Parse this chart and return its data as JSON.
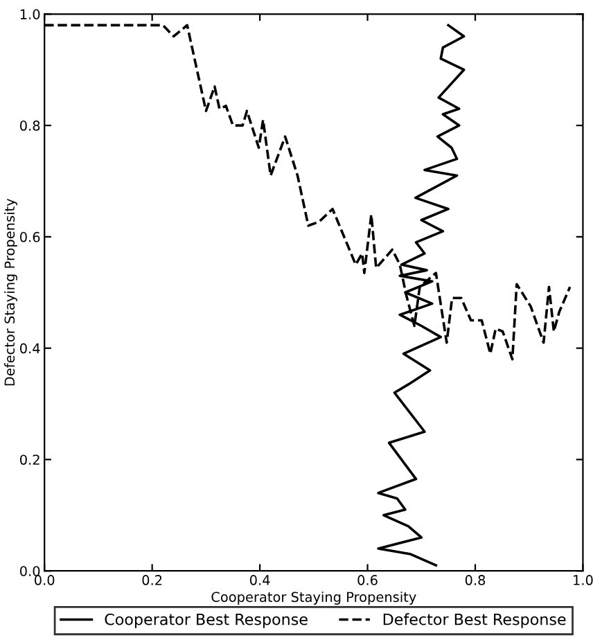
{
  "chart_data": {
    "type": "line",
    "xlabel": "Cooperator Staying Propensity",
    "ylabel": "Defector Staying Propensity",
    "xlim": [
      0.0,
      1.0
    ],
    "ylim": [
      0.0,
      1.0
    ],
    "xticks": [
      {
        "value": 0,
        "label": "0.0"
      },
      0.2,
      0.4,
      0.6,
      0.8,
      {
        "value": 1,
        "label": "1.0"
      }
    ],
    "yticks": [
      {
        "value": 0,
        "label": "0.0"
      },
      0.2,
      0.4,
      0.6,
      0.8,
      {
        "value": 1,
        "label": "1.0"
      }
    ],
    "grid": false,
    "legend": "bottom",
    "series": [
      {
        "name": "Cooperator Best Response",
        "color": "#000000",
        "line_style": "solid",
        "x": [
          0.727,
          0.68,
          0.62,
          0.7,
          0.676,
          0.63,
          0.67,
          0.655,
          0.62,
          0.69,
          0.64,
          0.706,
          0.65,
          0.676,
          0.716,
          0.667,
          0.736,
          0.7,
          0.66,
          0.72,
          0.67,
          0.72,
          0.66,
          0.71,
          0.663,
          0.706,
          0.69,
          0.74,
          0.7,
          0.75,
          0.689,
          0.766,
          0.706,
          0.766,
          0.756,
          0.73,
          0.77,
          0.74,
          0.77,
          0.732,
          0.779,
          0.736,
          0.74,
          0.779,
          0.75
        ],
        "values": [
          0.01,
          0.03,
          0.04,
          0.06,
          0.08,
          0.1,
          0.11,
          0.13,
          0.14,
          0.165,
          0.23,
          0.25,
          0.32,
          0.335,
          0.36,
          0.39,
          0.42,
          0.44,
          0.46,
          0.48,
          0.5,
          0.52,
          0.53,
          0.54,
          0.55,
          0.57,
          0.59,
          0.61,
          0.63,
          0.65,
          0.67,
          0.71,
          0.72,
          0.74,
          0.76,
          0.78,
          0.8,
          0.82,
          0.83,
          0.85,
          0.9,
          0.92,
          0.94,
          0.96,
          0.98
        ]
      },
      {
        "name": "Defector Best Response",
        "color": "#000000",
        "line_style": "dashed",
        "x": [
          0.0,
          0.22,
          0.24,
          0.265,
          0.3,
          0.316,
          0.325,
          0.337,
          0.35,
          0.368,
          0.376,
          0.398,
          0.406,
          0.42,
          0.447,
          0.47,
          0.49,
          0.51,
          0.535,
          0.578,
          0.59,
          0.594,
          0.607,
          0.616,
          0.646,
          0.66,
          0.672,
          0.687,
          0.697,
          0.727,
          0.747,
          0.757,
          0.774,
          0.792,
          0.812,
          0.828,
          0.838,
          0.851,
          0.869,
          0.877,
          0.903,
          0.927,
          0.937,
          0.946,
          0.956,
          0.976
        ],
        "values": [
          0.98,
          0.98,
          0.96,
          0.98,
          0.826,
          0.87,
          0.83,
          0.835,
          0.8,
          0.8,
          0.826,
          0.76,
          0.81,
          0.71,
          0.78,
          0.71,
          0.62,
          0.627,
          0.65,
          0.55,
          0.57,
          0.535,
          0.64,
          0.544,
          0.577,
          0.55,
          0.495,
          0.44,
          0.51,
          0.535,
          0.41,
          0.49,
          0.49,
          0.45,
          0.45,
          0.39,
          0.435,
          0.43,
          0.38,
          0.515,
          0.475,
          0.41,
          0.51,
          0.43,
          0.465,
          0.51
        ]
      }
    ]
  }
}
